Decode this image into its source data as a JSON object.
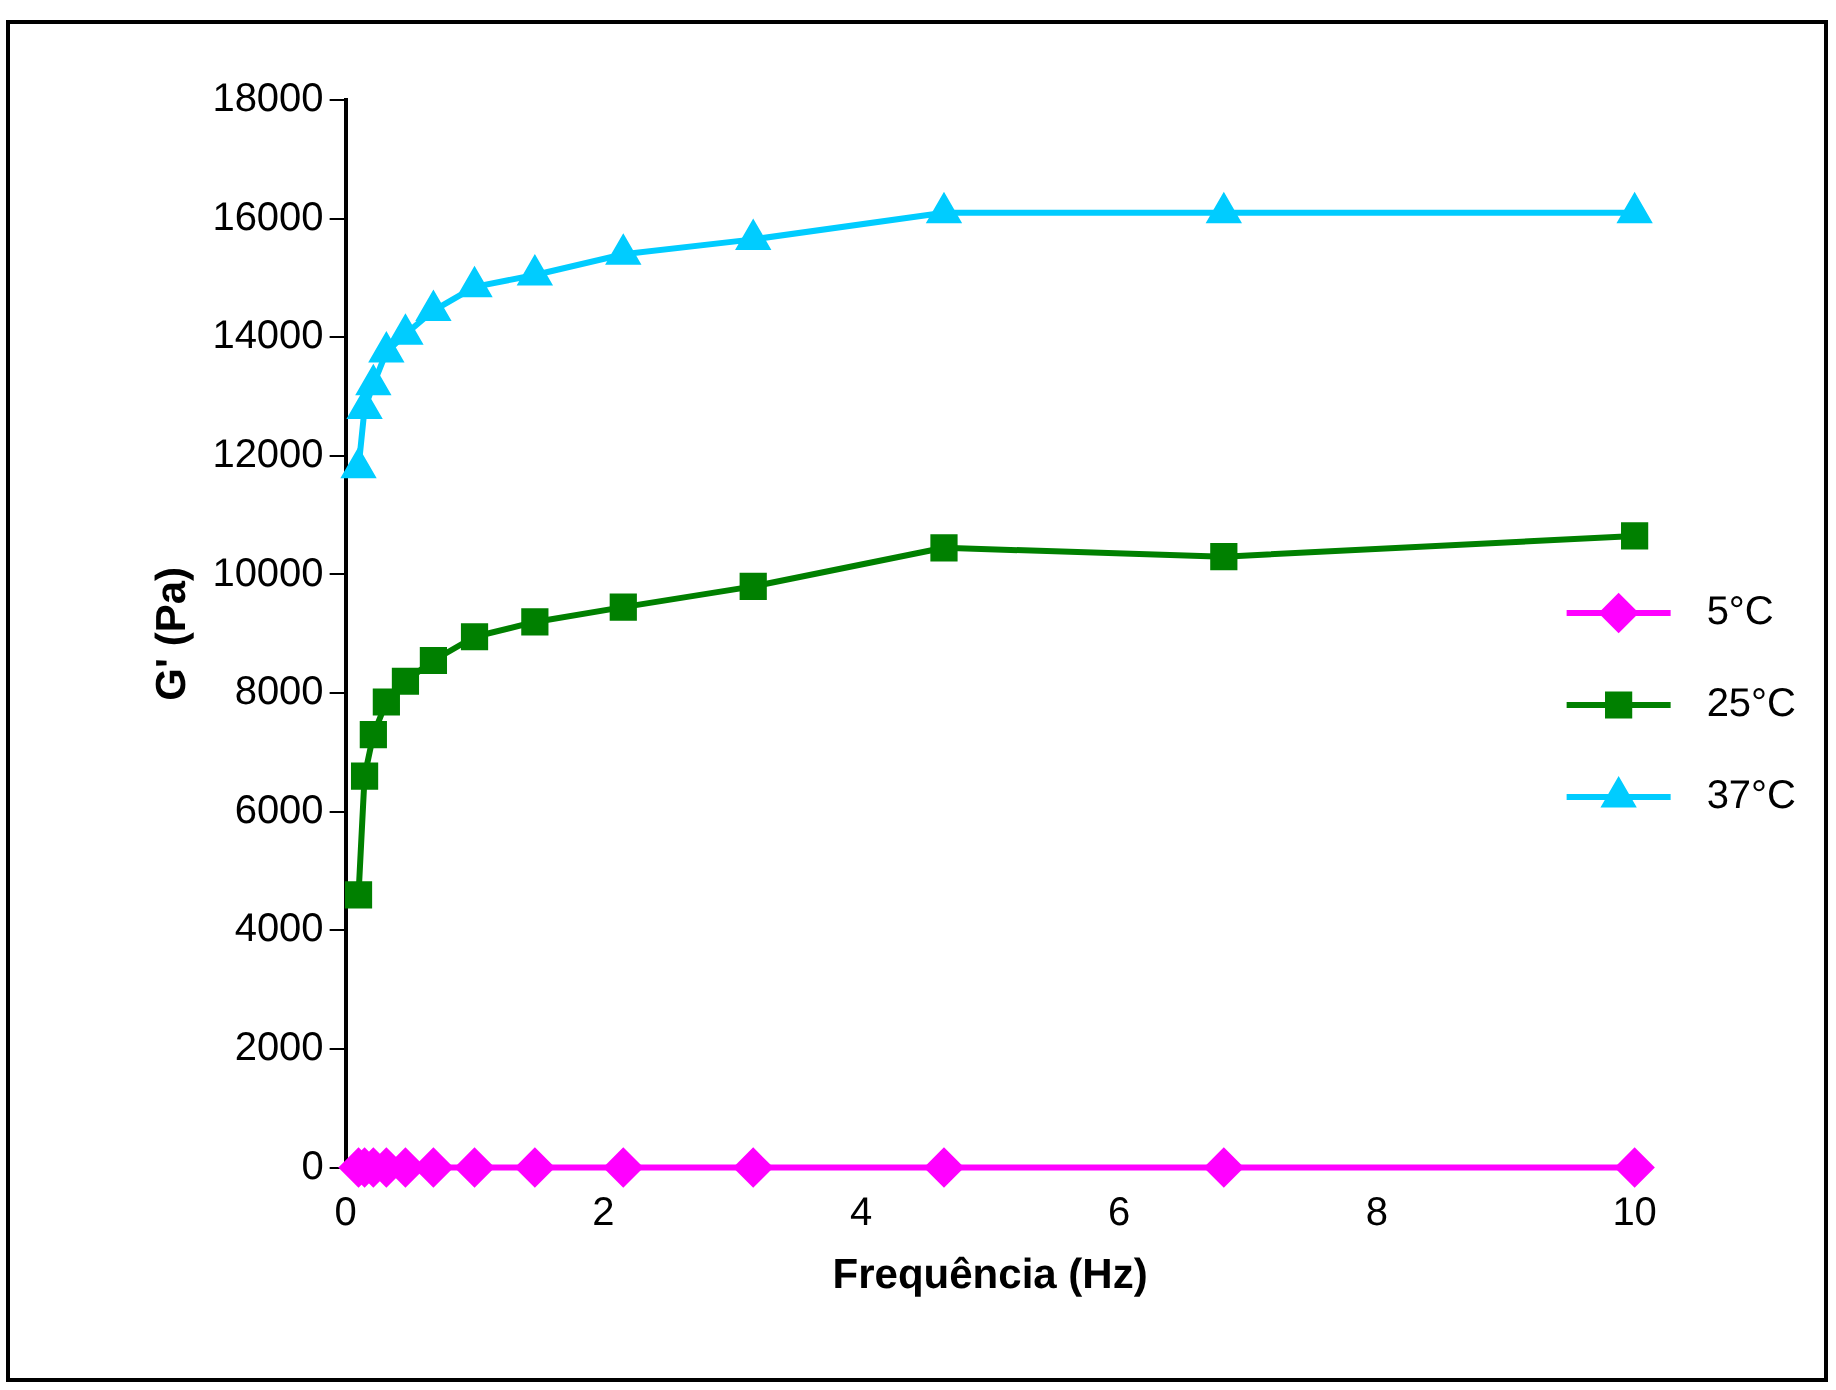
{
  "chart_data": {
    "type": "line",
    "xlabel": "Frequência (Hz)",
    "ylabel": "G' (Pa)",
    "xlim": [
      0,
      10
    ],
    "xticks": [
      0,
      2,
      4,
      6,
      8,
      10
    ],
    "ylim": [
      0,
      18000
    ],
    "yticks": [
      0,
      2000,
      4000,
      6000,
      8000,
      10000,
      12000,
      14000,
      16000,
      18000
    ],
    "grid": false,
    "legend": "right",
    "x": [
      0.1,
      0.147,
      0.215,
      0.316,
      0.464,
      0.681,
      1,
      1.468,
      2.154,
      3.162,
      4.642,
      6.813,
      10
    ],
    "series": [
      {
        "name": "5°C",
        "color": "#ff00ff",
        "marker": "diamond",
        "values": [
          0,
          0,
          0,
          0,
          0,
          0,
          0,
          0,
          0,
          0,
          0,
          0,
          0
        ]
      },
      {
        "name": "25°C",
        "color": "#008000",
        "marker": "square",
        "values": [
          4600,
          6600,
          7300,
          7850,
          8200,
          8550,
          8950,
          9200,
          9450,
          9800,
          10450,
          10300,
          10650
        ]
      },
      {
        "name": "37°C",
        "color": "#00ccff",
        "marker": "triangle",
        "values": [
          11800,
          12800,
          13200,
          13750,
          14050,
          14450,
          14850,
          15050,
          15400,
          15650,
          16100,
          16100,
          16100
        ]
      }
    ]
  }
}
